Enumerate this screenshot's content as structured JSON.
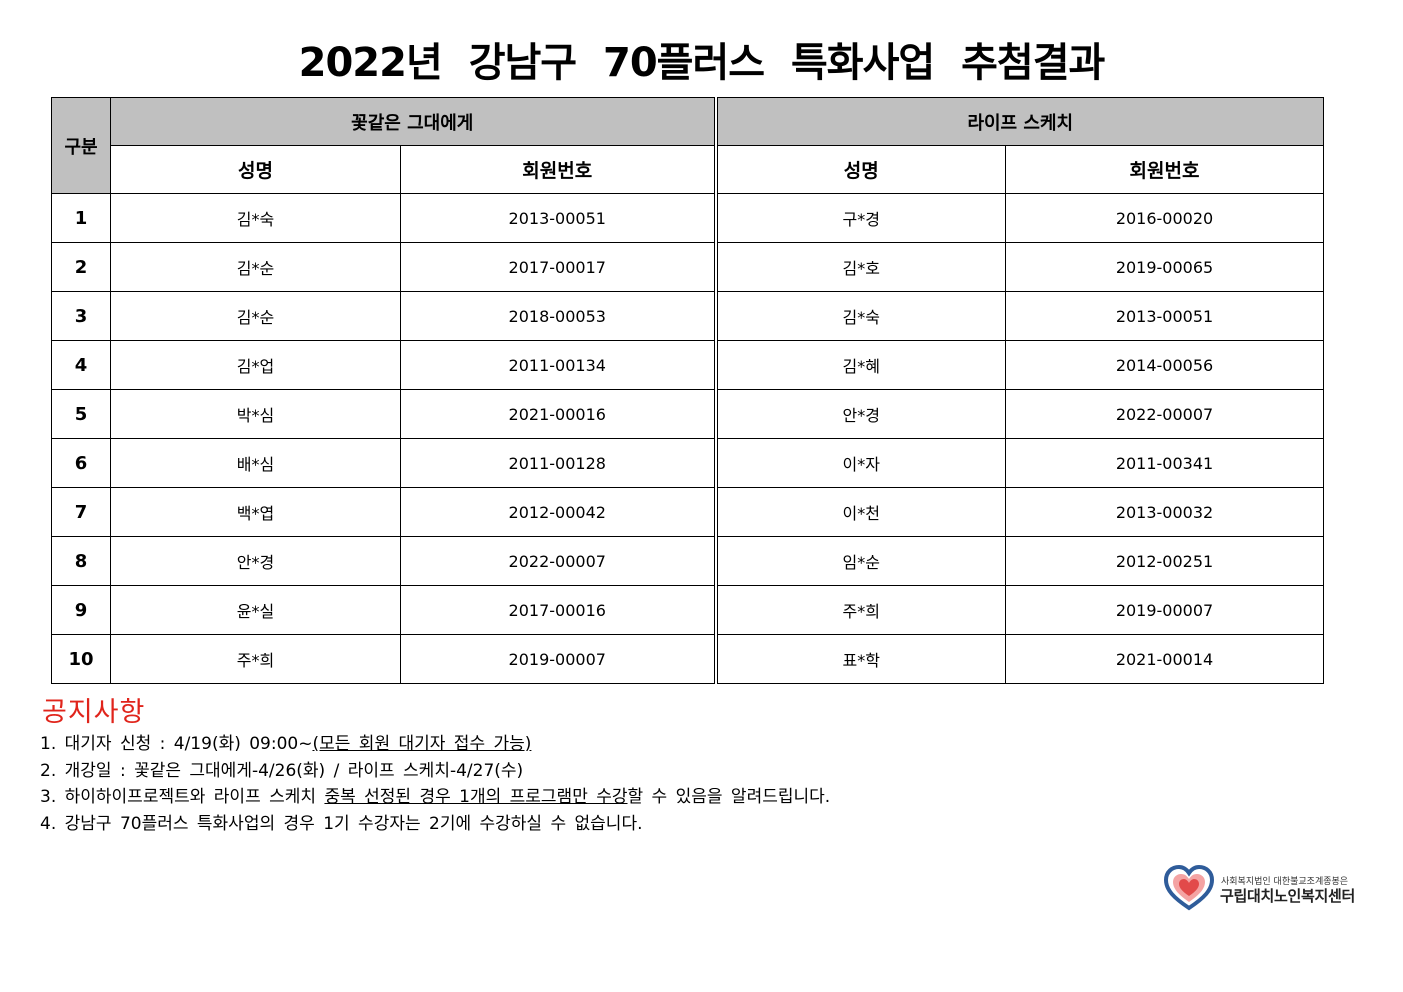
{
  "title": "2022년 강남구 70플러스 특화사업 추첨결과",
  "table": {
    "gubun_label": "구분",
    "groups": [
      "꽃같은 그대에게",
      "라이프 스케치"
    ],
    "col_headers": [
      "성명",
      "회원번호",
      "성명",
      "회원번호"
    ],
    "rows": [
      {
        "no": "1",
        "a_name": "김*숙",
        "a_id": "2013-00051",
        "b_name": "구*경",
        "b_id": "2016-00020"
      },
      {
        "no": "2",
        "a_name": "김*순",
        "a_id": "2017-00017",
        "b_name": "김*호",
        "b_id": "2019-00065"
      },
      {
        "no": "3",
        "a_name": "김*순",
        "a_id": "2018-00053",
        "b_name": "김*숙",
        "b_id": "2013-00051"
      },
      {
        "no": "4",
        "a_name": "김*업",
        "a_id": "2011-00134",
        "b_name": "김*혜",
        "b_id": "2014-00056"
      },
      {
        "no": "5",
        "a_name": "박*심",
        "a_id": "2021-00016",
        "b_name": "안*경",
        "b_id": "2022-00007"
      },
      {
        "no": "6",
        "a_name": "배*심",
        "a_id": "2011-00128",
        "b_name": "이*자",
        "b_id": "2011-00341"
      },
      {
        "no": "7",
        "a_name": "백*엽",
        "a_id": "2012-00042",
        "b_name": "이*천",
        "b_id": "2013-00032"
      },
      {
        "no": "8",
        "a_name": "안*경",
        "a_id": "2022-00007",
        "b_name": "임*순",
        "b_id": "2012-00251"
      },
      {
        "no": "9",
        "a_name": "윤*실",
        "a_id": "2017-00016",
        "b_name": "주*희",
        "b_id": "2019-00007"
      },
      {
        "no": "10",
        "a_name": "주*희",
        "a_id": "2019-00007",
        "b_name": "표*학",
        "b_id": "2021-00014"
      }
    ]
  },
  "notice": {
    "title": "공지사항",
    "items": [
      {
        "prefix": "1. 대기자 신청 : 4/19(화) 09:00~",
        "underlined": "(모든 회원 대기자 접수 가능)",
        "suffix": ""
      },
      {
        "prefix": "2. 개강일 : 꽃같은 그대에게-4/26(화) / 라이프 스케치-4/27(수)",
        "underlined": "",
        "suffix": ""
      },
      {
        "prefix": "3. 하이하이프로젝트와 라이프 스케치 ",
        "underlined": "중복 선정된 경우 1개의 프로그램만 수강",
        "suffix": "할 수 있음을 알려드립니다."
      },
      {
        "prefix": "4. 강남구 70플러스 특화사업의 경우 1기 수강자는 2기에 수강하실 수 없습니다.",
        "underlined": "",
        "suffix": ""
      }
    ]
  },
  "logo": {
    "subtitle": "사회복지법인 대한불교조계종봉은",
    "name": "구립대치노인복지센터",
    "icon": "heart-hands-logo-icon",
    "colors": {
      "blue": "#2f5c9a",
      "red": "#e24a4a",
      "pink": "#f4a3a3"
    }
  }
}
